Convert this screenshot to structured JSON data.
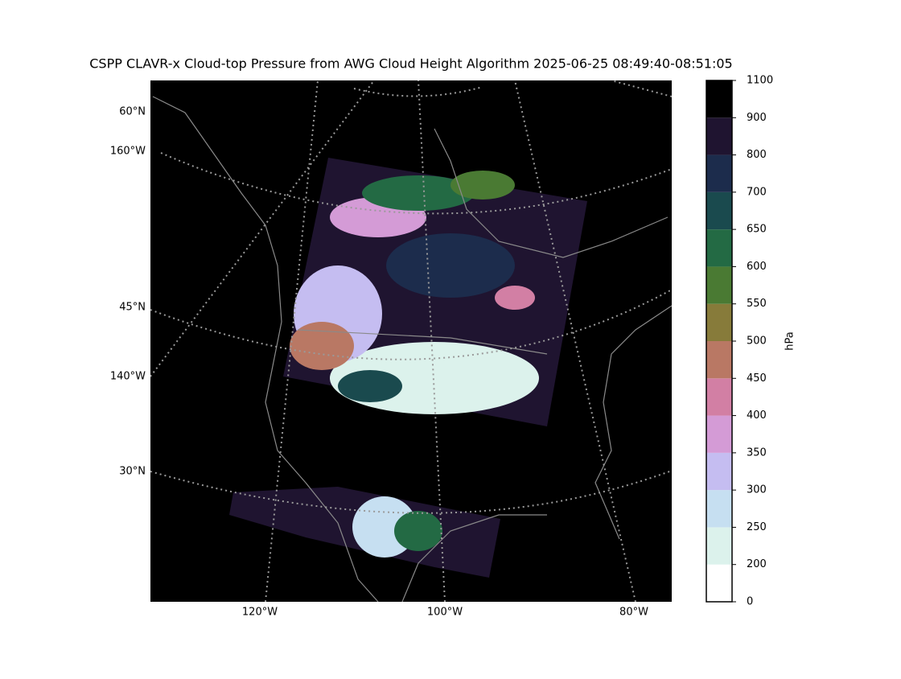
{
  "title": "CSPP CLAVR-x Cloud-top Pressure from AWG Cloud Height Algorithm 2025-06-25 08:49:40-08:51:05",
  "map": {
    "left_labels": [
      "60°N",
      "160°W",
      "45°N",
      "140°W",
      "30°N"
    ],
    "bottom_labels": [
      "120°W",
      "100°W",
      "80°W"
    ]
  },
  "colorbar": {
    "label": "hPa",
    "ticks": [
      0,
      200,
      250,
      300,
      350,
      400,
      450,
      500,
      550,
      600,
      650,
      700,
      800,
      900,
      1100
    ],
    "colors": [
      "#ffffff",
      "#dcf2ec",
      "#c6dff1",
      "#c5bdf1",
      "#d49bd6",
      "#d27fa4",
      "#b97864",
      "#877b3a",
      "#4a7a33",
      "#236a44",
      "#1a4a4e",
      "#1c2c4c",
      "#1f1430",
      "#000000"
    ]
  }
}
